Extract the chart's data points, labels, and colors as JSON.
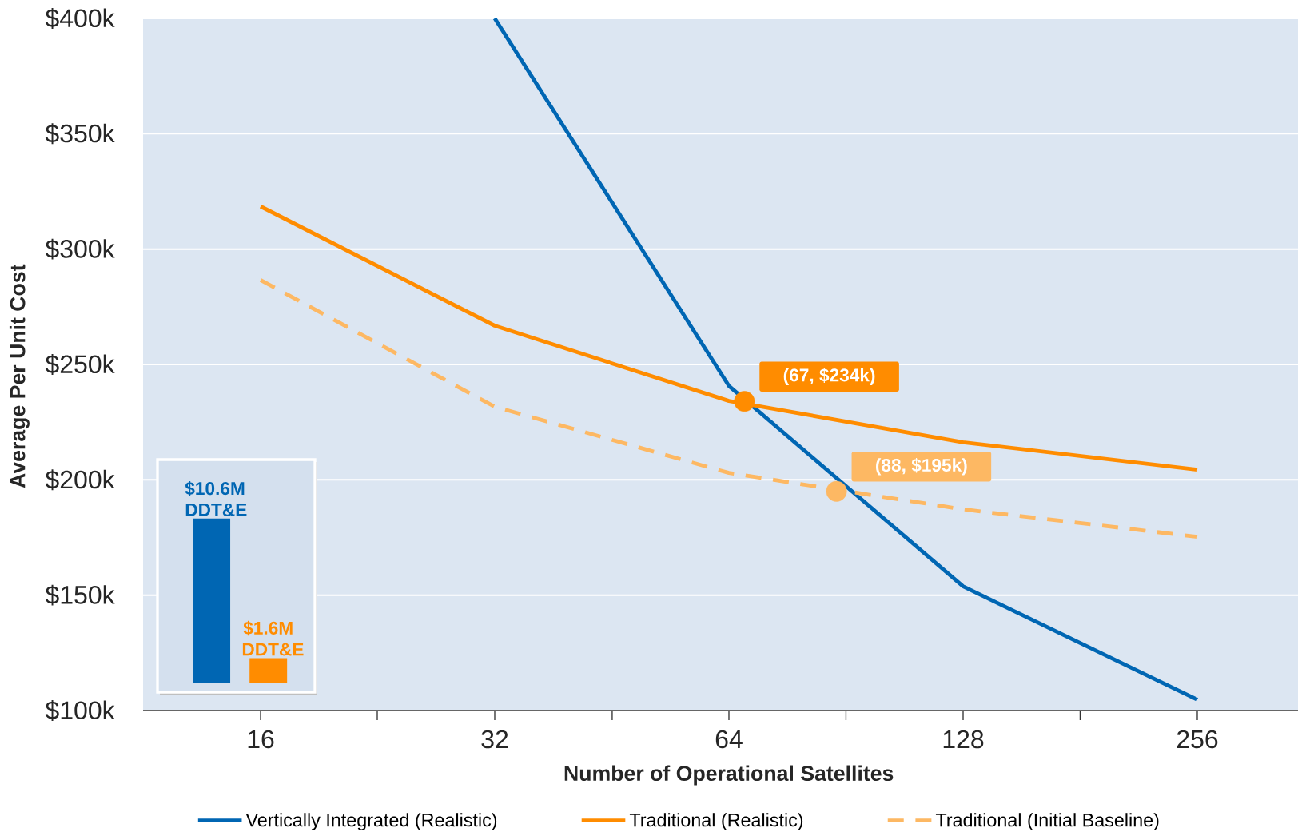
{
  "chart_data": [
    {
      "type": "line",
      "xlabel": "Number of Operational Satellites",
      "ylabel": "Average Per Unit Cost",
      "log": "x",
      "xlim": [
        11.3,
        345
      ],
      "ylim": [
        100,
        400
      ],
      "xticks": [
        16,
        {
          "value": 22.6,
          "label": null
        },
        32,
        {
          "value": 45.3,
          "label": null
        },
        64,
        {
          "value": 90.5,
          "label": null
        },
        128,
        {
          "value": 181,
          "label": null
        },
        256
      ],
      "yticks": [
        {
          "value": 100,
          "label": "$100k"
        },
        {
          "value": 150,
          "label": "$150k"
        },
        {
          "value": 200,
          "label": "$200k"
        },
        {
          "value": 250,
          "label": "$250k"
        },
        {
          "value": 300,
          "label": "$300k"
        },
        {
          "value": 350,
          "label": "$350k"
        },
        {
          "value": 400,
          "label": "$400k"
        }
      ],
      "grid": "y",
      "legend": "bottom",
      "series": [
        {
          "name": "Vertically Integrated (Realistic)",
          "color": "#0066b3",
          "x": [
            32,
            64,
            128,
            256
          ],
          "values": [
            400,
            240.7,
            153.8,
            104.7
          ]
        },
        {
          "name": "Traditional (Realistic)",
          "color": "#ff8c00",
          "x": [
            16,
            32,
            64,
            128,
            256
          ],
          "values": [
            318.5,
            266.8,
            234.2,
            216.3,
            204.4
          ]
        },
        {
          "name": "Traditional (Initial Baseline)",
          "color": "#fdb863",
          "line_style": "dashed",
          "x": [
            16,
            32,
            64,
            128,
            256
          ],
          "values": [
            286.6,
            231.7,
            203,
            187.2,
            175.3
          ]
        },
        {
          "type": "scatter",
          "color": "#ff8c00",
          "x": [
            67
          ],
          "values": [
            234
          ]
        },
        {
          "type": "scatter",
          "color": "#fdb863",
          "x": [
            88
          ],
          "values": [
            195
          ]
        }
      ],
      "annotations": [
        {
          "text": "(67, $234k)",
          "x": 67,
          "y": 234
        },
        {
          "text": "(88, $195k)",
          "x": 88,
          "y": 195
        }
      ]
    },
    {
      "type": "bar",
      "categories": [
        null,
        null
      ],
      "values": [
        10.6,
        1.6
      ],
      "colors": [
        "#0066b3",
        "#ff8c00"
      ],
      "value_labels": [
        "$10.6M DDT&E",
        "$1.6M DDT&E"
      ]
    }
  ]
}
